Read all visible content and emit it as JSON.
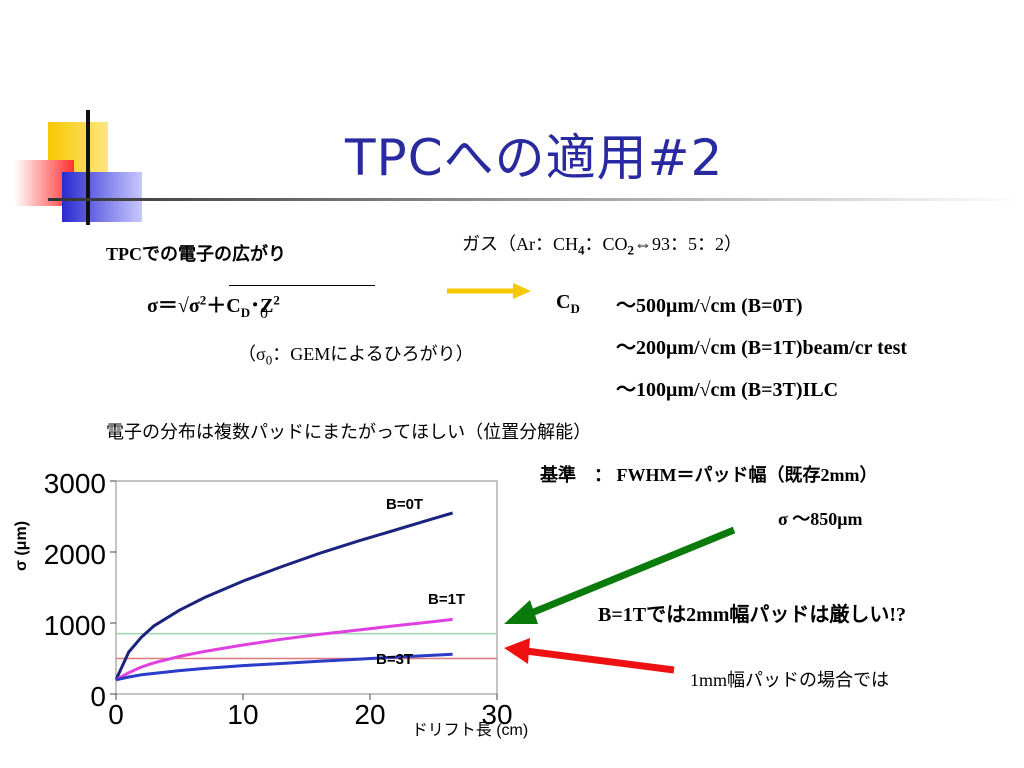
{
  "slide": {
    "title": "TPCへの適用#2",
    "heading": "TPCでの電子の広がり",
    "formula": {
      "lhs": "σ＝√σ",
      "sup2": "2",
      "plus": "＋C",
      "sub_D": "D",
      "dot": "･Z",
      "sup2b": "2",
      "sub_0": "0"
    },
    "gem_note": {
      "open": "（σ",
      "sub": "0",
      "rest": "：GEMによるひろがり）"
    },
    "gas": {
      "prefix": "ガス（Ar：CH",
      "sub4": "4",
      "mid": "：CO",
      "sub2": "2",
      "suffix": "⇔93：5：2）"
    },
    "cd_label": "C",
    "cd_sub": "D",
    "cd_rows": [
      {
        "value": "～500μm/",
        "root": "√",
        "rest": "cm (B=0T)"
      },
      {
        "value": "～200μm/",
        "root": "√",
        "rest": "cm  (B=1T)beam/cr test"
      },
      {
        "value": "～100μm/",
        "root": "√",
        "rest": "cm (B=3T)ILC"
      }
    ],
    "wish": "電子の分布は複数パッドにまたがってほしい（位置分解能）",
    "criterion": "基準　：  FWHM＝パッド幅（既存2mm）",
    "sigma_value": "σ ～850μm",
    "b1t_note": "B=1Tでは2mm幅パッドは厳しい!?",
    "mm1_note": "1mm幅パッドの場合では"
  },
  "colors": {
    "title": "#2a2aa0",
    "b0t": "#1a237e",
    "b1t": "#e040e0",
    "b3t": "#2a3cc8",
    "hline_green": "#9fd0b0",
    "hline_red": "#e07a7a",
    "arrow_green": "#0a7a0a",
    "arrow_red": "#ee1111",
    "arrow_yellow": "#f7c800"
  },
  "chart_data": {
    "type": "line",
    "x": [
      0,
      1,
      2,
      3,
      5,
      7,
      10,
      13,
      16,
      19,
      22,
      25,
      26.5
    ],
    "series": [
      {
        "name": "B=0T",
        "values": [
          200,
          590,
          800,
          960,
          1180,
          1360,
          1590,
          1790,
          1980,
          2150,
          2310,
          2470,
          2550
        ]
      },
      {
        "name": "B=1T",
        "values": [
          200,
          300,
          380,
          440,
          530,
          600,
          690,
          770,
          840,
          900,
          960,
          1020,
          1050
        ]
      },
      {
        "name": "B=3T",
        "values": [
          200,
          240,
          270,
          290,
          330,
          360,
          400,
          430,
          460,
          490,
          520,
          545,
          560
        ]
      }
    ],
    "hlines": [
      850,
      500
    ],
    "xlabel": "ドリフト長 (cm)",
    "ylabel": "σ (μm)",
    "xticks": [
      "0",
      "10",
      "20",
      "30"
    ],
    "yticks": [
      "3000",
      "2000",
      "1000",
      "0"
    ],
    "xlim": [
      0,
      30
    ],
    "ylim": [
      0,
      3000
    ]
  }
}
